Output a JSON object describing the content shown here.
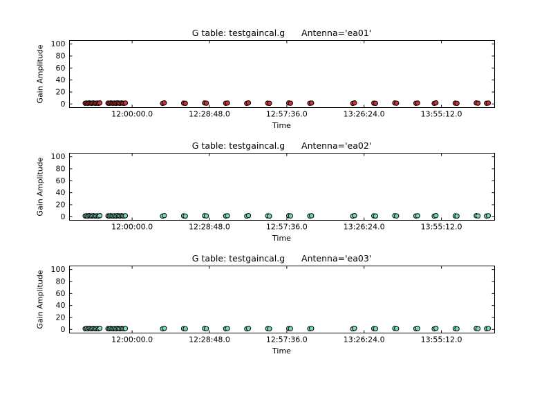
{
  "figure": {
    "background": "#ffffff"
  },
  "chart_data": [
    {
      "type": "scatter",
      "title": "G table: testgaincal.g      Antenna='ea01'",
      "xlabel": "Time",
      "ylabel": "Gain Amplitude",
      "xlim": [
        41800,
        51300
      ],
      "ylim": [
        -6,
        106
      ],
      "x_ticks": {
        "values": [
          43200,
          44928,
          46656,
          48384,
          50112
        ],
        "labels": [
          "12:00:00.0",
          "12:28:48.0",
          "12:57:36.0",
          "13:26:24.0",
          "13:55:12.0"
        ]
      },
      "y_ticks": {
        "values": [
          0,
          20,
          40,
          60,
          80,
          100
        ],
        "labels": [
          "0",
          "20",
          "40",
          "60",
          "80",
          "100"
        ]
      },
      "legend": "none",
      "grid": false,
      "marker": {
        "shape": "circle",
        "fill": "#cc3333",
        "edge": "#000000",
        "radius": 3.2
      },
      "x": [
        42150,
        42180,
        42210,
        42240,
        42270,
        42300,
        42330,
        42360,
        42390,
        42420,
        42450,
        42480,
        42660,
        42690,
        42720,
        42750,
        42780,
        42810,
        42840,
        42870,
        42900,
        42930,
        42960,
        42990,
        43020,
        43050,
        43880,
        43920,
        44350,
        44390,
        44820,
        44860,
        45290,
        45330,
        45760,
        45800,
        46230,
        46270,
        46700,
        46740,
        47170,
        47210,
        48130,
        48170,
        48600,
        48640,
        49070,
        49110,
        49540,
        49580,
        49950,
        49990,
        50420,
        50460,
        50890,
        50930,
        51120,
        51160
      ],
      "y": [
        1.2,
        1.6,
        1.0,
        1.8,
        1.4,
        1.1,
        1.7,
        1.3,
        1.2,
        1.6,
        1.0,
        1.8,
        1.4,
        1.1,
        1.7,
        1.3,
        1.2,
        1.6,
        1.0,
        1.8,
        1.4,
        1.1,
        1.7,
        1.3,
        1.2,
        1.6,
        1.0,
        1.8,
        1.4,
        1.1,
        1.7,
        1.3,
        1.2,
        1.6,
        1.0,
        1.8,
        1.4,
        1.1,
        1.7,
        1.3,
        1.2,
        1.6,
        1.0,
        1.8,
        1.4,
        1.1,
        1.7,
        1.3,
        1.2,
        1.6,
        1.0,
        1.8,
        1.4,
        1.1,
        1.7,
        1.3,
        1.2,
        1.6
      ]
    },
    {
      "type": "scatter",
      "title": "G table: testgaincal.g      Antenna='ea02'",
      "xlabel": "Time",
      "ylabel": "Gain Amplitude",
      "xlim": [
        41800,
        51300
      ],
      "ylim": [
        -6,
        106
      ],
      "x_ticks": {
        "values": [
          43200,
          44928,
          46656,
          48384,
          50112
        ],
        "labels": [
          "12:00:00.0",
          "12:28:48.0",
          "12:57:36.0",
          "13:26:24.0",
          "13:55:12.0"
        ]
      },
      "y_ticks": {
        "values": [
          0,
          20,
          40,
          60,
          80,
          100
        ],
        "labels": [
          "0",
          "20",
          "40",
          "60",
          "80",
          "100"
        ]
      },
      "legend": "none",
      "grid": false,
      "marker": {
        "shape": "circle",
        "fill": "#76d7c4",
        "edge": "#000000",
        "radius": 3.2
      },
      "x": [
        42150,
        42180,
        42210,
        42240,
        42270,
        42300,
        42330,
        42360,
        42390,
        42420,
        42450,
        42480,
        42660,
        42690,
        42720,
        42750,
        42780,
        42810,
        42840,
        42870,
        42900,
        42930,
        42960,
        42990,
        43020,
        43050,
        43880,
        43920,
        44350,
        44390,
        44820,
        44860,
        45290,
        45330,
        45760,
        45800,
        46230,
        46270,
        46700,
        46740,
        47170,
        47210,
        48130,
        48170,
        48600,
        48640,
        49070,
        49110,
        49540,
        49580,
        49950,
        49990,
        50420,
        50460,
        50890,
        50930,
        51120,
        51160
      ],
      "y": [
        1.2,
        1.6,
        1.0,
        1.8,
        1.4,
        1.1,
        1.7,
        1.3,
        1.2,
        1.6,
        1.0,
        1.8,
        1.4,
        1.1,
        1.7,
        1.3,
        1.2,
        1.6,
        1.0,
        1.8,
        1.4,
        1.1,
        1.7,
        1.3,
        1.2,
        1.6,
        1.0,
        1.8,
        1.4,
        1.1,
        1.7,
        1.3,
        1.2,
        1.6,
        1.0,
        1.8,
        1.4,
        1.1,
        1.7,
        1.3,
        1.2,
        1.6,
        1.0,
        1.8,
        1.4,
        1.1,
        1.7,
        1.3,
        1.2,
        1.6,
        1.0,
        1.8,
        1.4,
        1.1,
        1.7,
        1.3,
        1.2,
        1.6
      ]
    },
    {
      "type": "scatter",
      "title": "G table: testgaincal.g      Antenna='ea03'",
      "xlabel": "Time",
      "ylabel": "Gain Amplitude",
      "xlim": [
        41800,
        51300
      ],
      "ylim": [
        -6,
        106
      ],
      "x_ticks": {
        "values": [
          43200,
          44928,
          46656,
          48384,
          50112
        ],
        "labels": [
          "12:00:00.0",
          "12:28:48.0",
          "12:57:36.0",
          "13:26:24.0",
          "13:55:12.0"
        ]
      },
      "y_ticks": {
        "values": [
          0,
          20,
          40,
          60,
          80,
          100
        ],
        "labels": [
          "0",
          "20",
          "40",
          "60",
          "80",
          "100"
        ]
      },
      "legend": "none",
      "grid": false,
      "marker": {
        "shape": "circle",
        "fill": "#76d7c4",
        "edge": "#000000",
        "radius": 3.2
      },
      "x": [
        42150,
        42180,
        42210,
        42240,
        42270,
        42300,
        42330,
        42360,
        42390,
        42420,
        42450,
        42480,
        42660,
        42690,
        42720,
        42750,
        42780,
        42810,
        42840,
        42870,
        42900,
        42930,
        42960,
        42990,
        43020,
        43050,
        43880,
        43920,
        44350,
        44390,
        44820,
        44860,
        45290,
        45330,
        45760,
        45800,
        46230,
        46270,
        46700,
        46740,
        47170,
        47210,
        48130,
        48170,
        48600,
        48640,
        49070,
        49110,
        49540,
        49580,
        49950,
        49990,
        50420,
        50460,
        50890,
        50930,
        51120,
        51160
      ],
      "y": [
        1.2,
        1.6,
        1.0,
        1.8,
        1.4,
        1.1,
        1.7,
        1.3,
        1.2,
        1.6,
        1.0,
        1.8,
        1.4,
        1.1,
        1.7,
        1.3,
        1.2,
        1.6,
        1.0,
        1.8,
        1.4,
        1.1,
        1.7,
        1.3,
        1.2,
        1.6,
        1.0,
        1.8,
        1.4,
        1.1,
        1.7,
        1.3,
        1.2,
        1.6,
        1.0,
        1.8,
        1.4,
        1.1,
        1.7,
        1.3,
        1.2,
        1.6,
        1.0,
        1.8,
        1.4,
        1.1,
        1.7,
        1.3,
        1.2,
        1.6,
        1.0,
        1.8,
        1.4,
        1.1,
        1.7,
        1.3,
        1.2,
        1.6
      ]
    }
  ]
}
